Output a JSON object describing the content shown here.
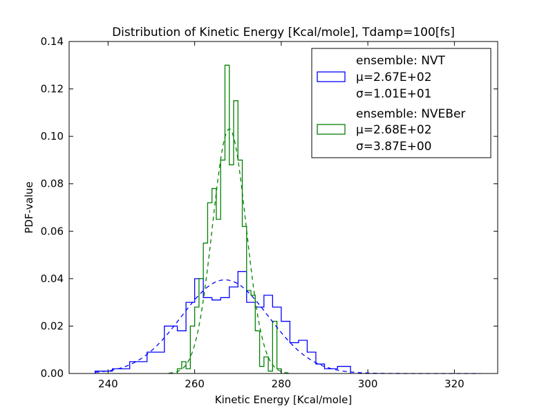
{
  "chart_data": {
    "type": "histogram",
    "title": "Distribution of Kinetic Energy [Kcal/mole], Tdamp=100[fs]",
    "xlabel": "Kinetic Energy [Kcal/mole]",
    "ylabel": "PDF-value",
    "xlim": [
      231,
      330
    ],
    "ylim": [
      0,
      0.14
    ],
    "xticks": [
      240,
      260,
      280,
      300,
      320
    ],
    "yticks": [
      0.0,
      0.02,
      0.04,
      0.06,
      0.08,
      0.1,
      0.12,
      0.14
    ],
    "xtick_labels": [
      "240",
      "260",
      "280",
      "300",
      "320"
    ],
    "ytick_labels": [
      "0.00",
      "0.02",
      "0.04",
      "0.06",
      "0.08",
      "0.10",
      "0.12",
      "0.14"
    ],
    "grid": false,
    "legend_position": "top-right",
    "series": [
      {
        "color": "#0000ff",
        "legend_lines": [
          "ensemble: NVT",
          "μ=2.67E+02",
          "σ=1.01E+01"
        ],
        "mu": 267.0,
        "sigma": 10.1,
        "bin_edges": [
          237,
          241,
          245,
          249,
          253,
          256,
          258,
          260,
          262,
          264,
          266,
          268,
          270,
          272,
          274,
          276,
          278,
          280,
          282,
          284,
          286,
          288,
          290,
          293,
          296
        ],
        "values": [
          0.001,
          0.002,
          0.005,
          0.009,
          0.02,
          0.018,
          0.03,
          0.04,
          0.032,
          0.031,
          0.032,
          0.0365,
          0.043,
          0.03,
          0.028,
          0.033,
          0.028,
          0.022,
          0.013,
          0.014,
          0.009,
          0.004,
          0.002,
          0.003
        ]
      },
      {
        "color": "#008000",
        "legend_lines": [
          "ensemble: NVEBer",
          "μ=2.68E+02",
          "σ=3.87E+00"
        ],
        "mu": 268.0,
        "sigma": 3.87,
        "bin_edges": [
          256,
          257,
          258,
          259,
          260,
          261,
          262,
          263,
          264,
          265,
          266,
          267,
          268,
          269,
          270,
          271,
          272,
          273,
          274,
          275,
          276,
          277,
          278,
          279,
          280
        ],
        "values": [
          0.002,
          0.005,
          0.002,
          0.02,
          0.028,
          0.04,
          0.055,
          0.072,
          0.078,
          0.065,
          0.09,
          0.13,
          0.088,
          0.115,
          0.09,
          0.062,
          0.035,
          0.033,
          0.018,
          0.003,
          0.007,
          0.001,
          0.022,
          0.002
        ]
      }
    ]
  }
}
